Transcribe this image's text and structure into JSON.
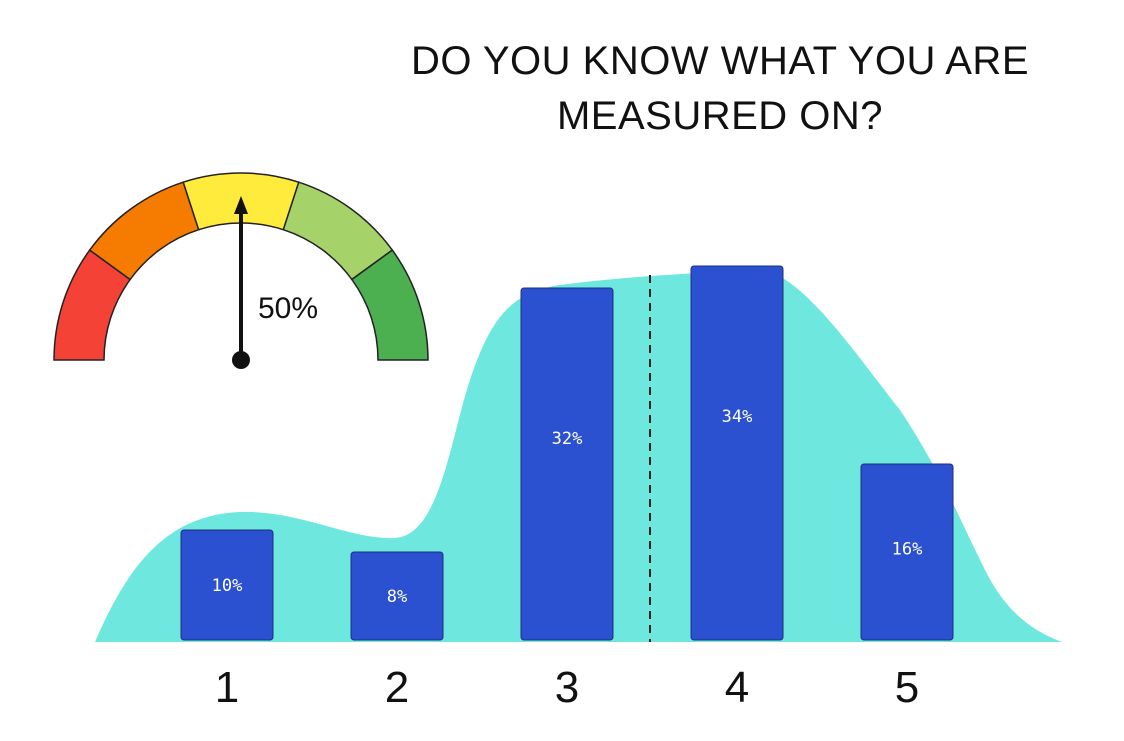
{
  "title_lines": [
    "DO YOU KNOW WHAT YOU ARE",
    "MEASURED ON?"
  ],
  "gauge": {
    "value_label": "50%",
    "value": 0.5,
    "segment_colors": [
      "#f44336",
      "#f57c00",
      "#ffeb3b",
      "#a5d36a",
      "#4caf50"
    ]
  },
  "colors": {
    "bar": "#2b50d0",
    "area": "#6ee8de",
    "divider": "#222222"
  },
  "chart_data": {
    "type": "bar",
    "title": "DO YOU KNOW WHAT YOU ARE MEASURED ON?",
    "categories": [
      "1",
      "2",
      "3",
      "4",
      "5"
    ],
    "values": [
      10,
      8,
      32,
      34,
      16
    ],
    "data_labels": [
      "10%",
      "8%",
      "32%",
      "34%",
      "16%"
    ],
    "unit": "%",
    "ylim": [
      0,
      40
    ],
    "grid": false,
    "legend": "none"
  }
}
